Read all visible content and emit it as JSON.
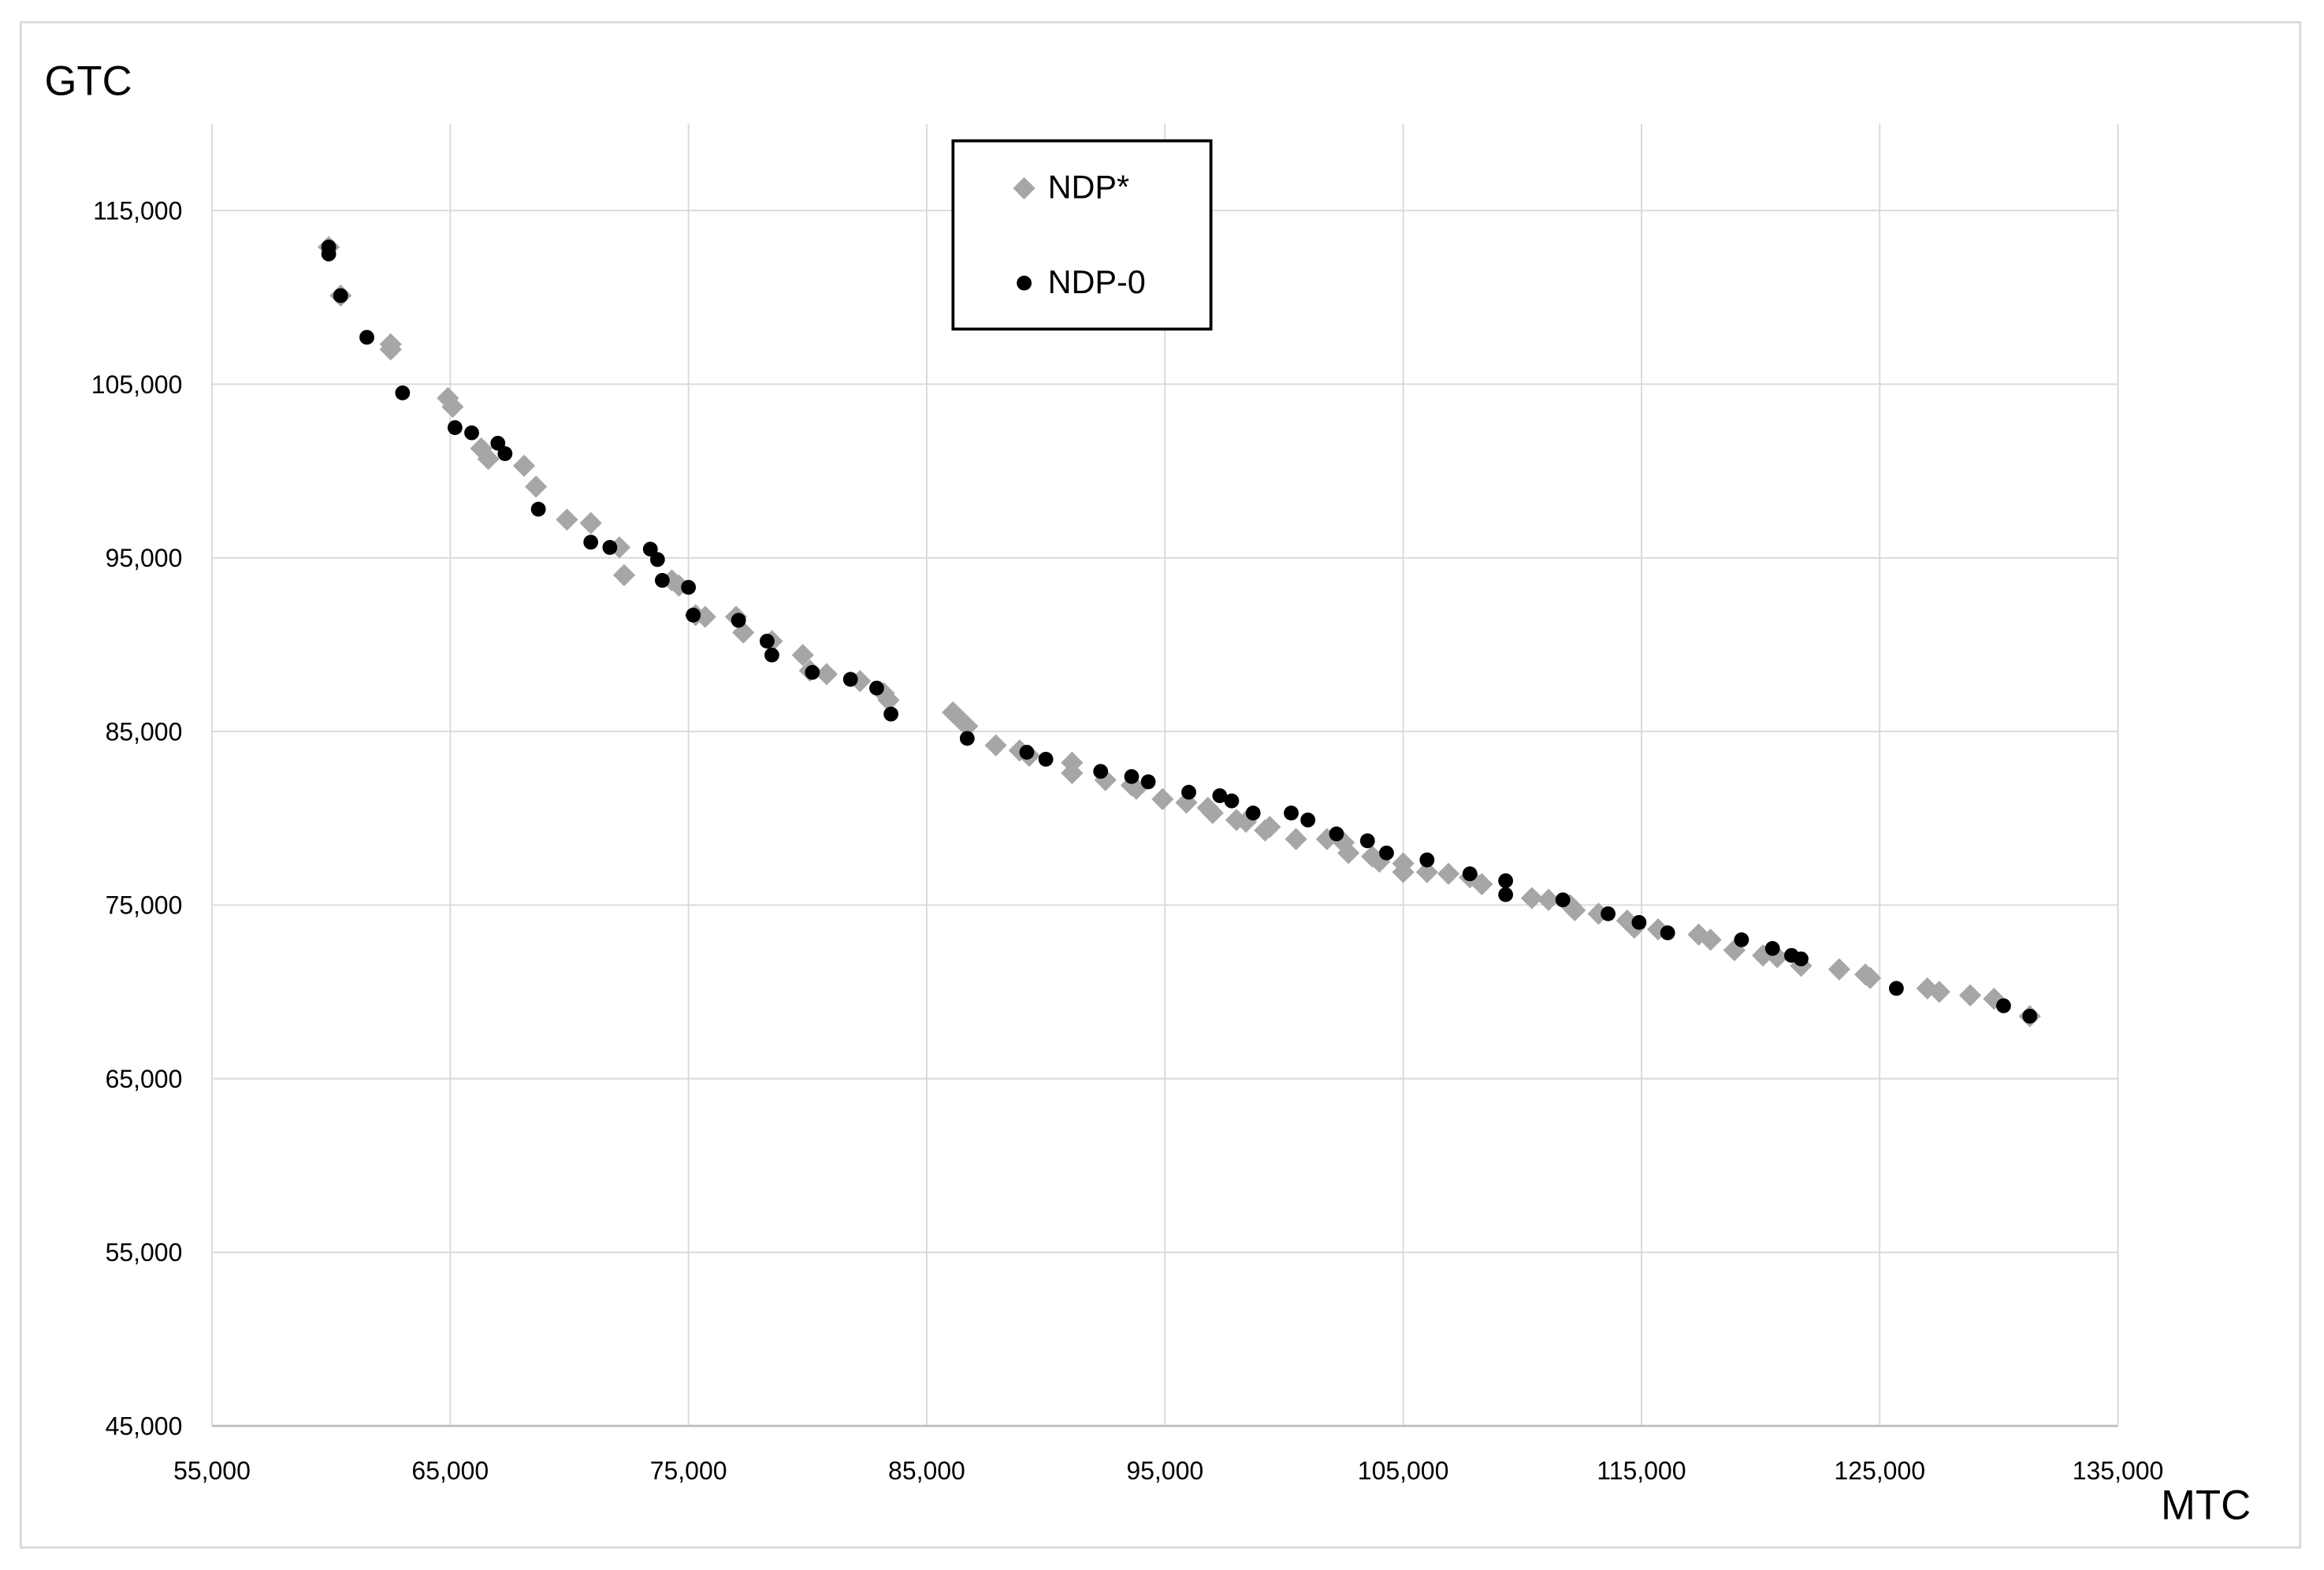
{
  "chart_data": {
    "type": "scatter",
    "ylabel": "GTC",
    "xlabel": "MTC",
    "xlim": [
      55000,
      135000
    ],
    "xticks": [
      {
        "value": 55000,
        "label": "55,000"
      },
      {
        "value": 65000,
        "label": "65,000"
      },
      {
        "value": 75000,
        "label": "75,000"
      },
      {
        "value": 85000,
        "label": "85,000"
      },
      {
        "value": 95000,
        "label": "95,000"
      },
      {
        "value": 105000,
        "label": "105,000"
      },
      {
        "value": 115000,
        "label": "115,000"
      },
      {
        "value": 125000,
        "label": "125,000"
      },
      {
        "value": 135000,
        "label": "135,000"
      }
    ],
    "ylim": [
      45000,
      120000
    ],
    "yticks": [
      {
        "value": 45000,
        "label": "45,000"
      },
      {
        "value": 55000,
        "label": "55,000"
      },
      {
        "value": 65000,
        "label": "65,000"
      },
      {
        "value": 75000,
        "label": "75,000"
      },
      {
        "value": 85000,
        "label": "85,000"
      },
      {
        "value": 95000,
        "label": "95,000"
      },
      {
        "value": 105000,
        "label": "105,000"
      },
      {
        "value": 115000,
        "label": "115,000"
      }
    ],
    "grid": true,
    "legend": "top",
    "series": [
      {
        "name": "NDP*",
        "color": "#a6a6a6",
        "marker": "diamond",
        "x": [
          59900,
          60400,
          62500,
          62500,
          64900,
          65100,
          66300,
          66600,
          68100,
          68600,
          69900,
          70900,
          72100,
          72300,
          74300,
          74600,
          75300,
          75700,
          77000,
          77300,
          78500,
          79800,
          80100,
          80800,
          82200,
          83200,
          83400,
          86100,
          86400,
          86700,
          87900,
          88900,
          89300,
          91100,
          91100,
          92500,
          93600,
          93800,
          94900,
          95900,
          96800,
          97000,
          98000,
          98400,
          99200,
          99400,
          100500,
          101800,
          102500,
          102700,
          103700,
          104000,
          105000,
          105000,
          106000,
          106900,
          107800,
          108300,
          110400,
          111100,
          112000,
          112200,
          113200,
          114400,
          114700,
          115700,
          117400,
          117900,
          118900,
          120100,
          120700,
          121700,
          123300,
          124400,
          124600,
          127000,
          127500,
          128800,
          129800,
          131300
        ],
        "values": [
          112900,
          110100,
          107300,
          107000,
          104200,
          103700,
          101300,
          100700,
          100300,
          99100,
          97200,
          97000,
          95600,
          94000,
          93700,
          93400,
          91700,
          91600,
          91600,
          90700,
          90200,
          89400,
          88500,
          88300,
          87900,
          87200,
          86800,
          86100,
          85700,
          85300,
          84200,
          83900,
          83600,
          83200,
          82600,
          82200,
          81900,
          81700,
          81100,
          80900,
          80600,
          80300,
          79900,
          79800,
          79300,
          79500,
          78800,
          78800,
          78600,
          78000,
          77800,
          77500,
          77400,
          76900,
          76900,
          76800,
          76600,
          76200,
          75400,
          75300,
          75000,
          74700,
          74500,
          74100,
          73700,
          73600,
          73300,
          73000,
          72400,
          72100,
          72000,
          71500,
          71300,
          71000,
          70800,
          70200,
          70000,
          69800,
          69600,
          68600
        ]
      },
      {
        "name": "NDP-0",
        "color": "#000000",
        "marker": "circle",
        "x": [
          59900,
          59900,
          60400,
          61500,
          63000,
          65200,
          65900,
          67000,
          67300,
          68700,
          70900,
          71700,
          73400,
          73700,
          73900,
          75000,
          75200,
          77100,
          78300,
          78500,
          80200,
          81800,
          82900,
          83500,
          86700,
          89200,
          90000,
          92300,
          93600,
          94300,
          96000,
          97300,
          97800,
          98700,
          100300,
          101000,
          102200,
          103500,
          104300,
          106000,
          107800,
          109300,
          109300,
          111700,
          113600,
          114900,
          116100,
          119200,
          120500,
          121300,
          121700,
          125700,
          130200,
          131300
        ],
        "values": [
          112900,
          112500,
          110100,
          107700,
          104500,
          102500,
          102200,
          101600,
          101000,
          97800,
          95900,
          95600,
          95500,
          94900,
          93700,
          93300,
          91700,
          91400,
          90200,
          89400,
          88400,
          88000,
          87500,
          86000,
          84600,
          83800,
          83400,
          82700,
          82400,
          82100,
          81500,
          81300,
          81000,
          80300,
          80300,
          79900,
          79100,
          78700,
          78000,
          77600,
          76800,
          76400,
          75600,
          75300,
          74500,
          74000,
          73400,
          73000,
          72500,
          72100,
          71900,
          70200,
          69200,
          68600
        ]
      }
    ]
  }
}
